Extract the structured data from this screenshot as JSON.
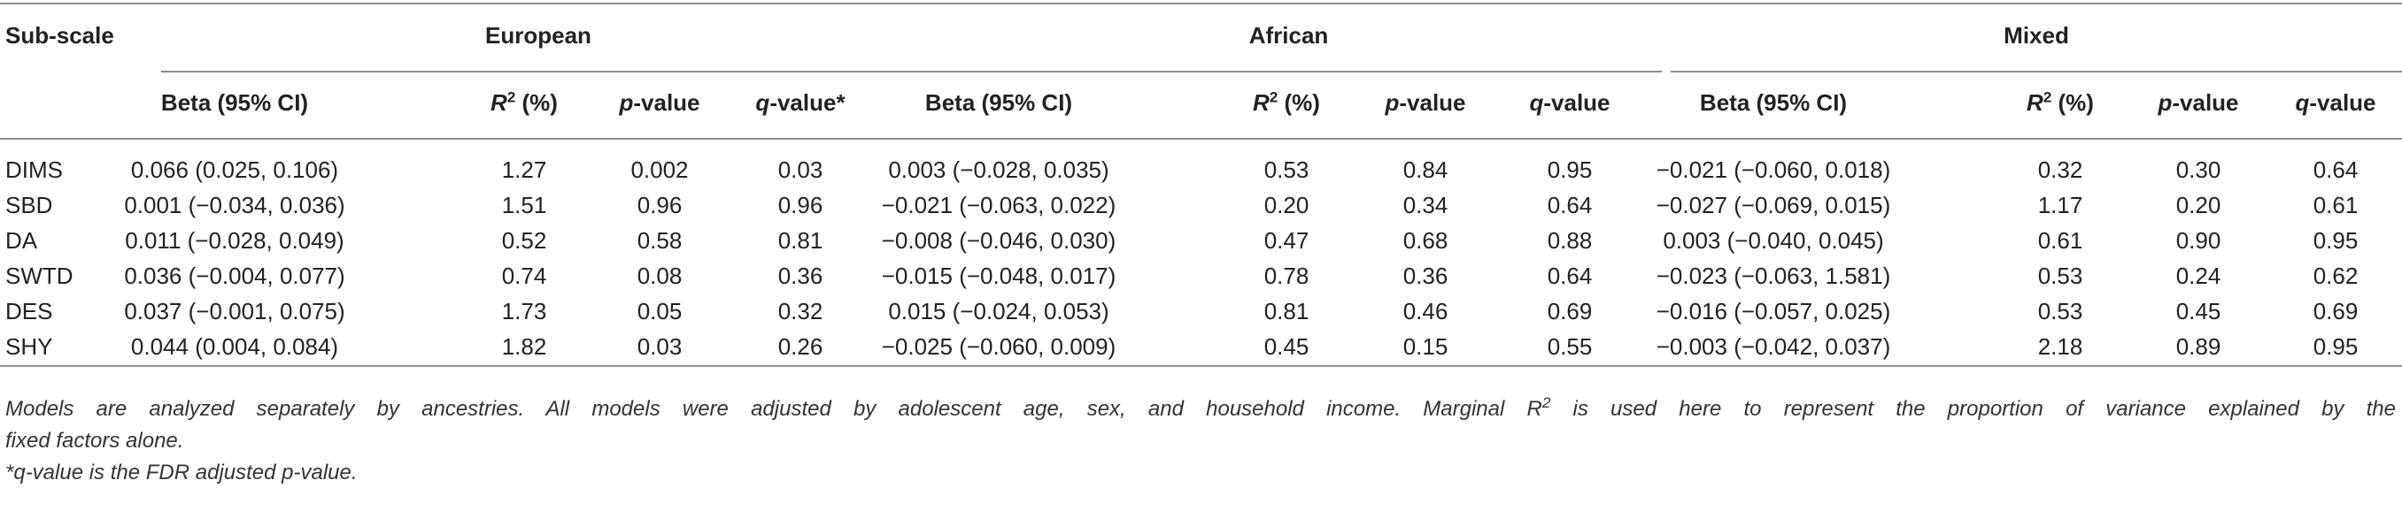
{
  "table": {
    "subscale_header": "Sub-scale",
    "groups": [
      "European",
      "African",
      "Mixed"
    ],
    "columns": [
      {
        "label": "Beta (95% CI)"
      },
      {
        "label": "R",
        "sup": "2",
        "suffix": " (%)"
      },
      {
        "prefix_italic": "p",
        "suffix": "-value"
      },
      {
        "prefix_italic": "q",
        "suffix": "-value*"
      },
      {
        "label": "Beta (95% CI)"
      },
      {
        "label": "R",
        "sup": "2",
        "suffix": " (%)"
      },
      {
        "prefix_italic": "p",
        "suffix": "-value"
      },
      {
        "prefix_italic": "q",
        "suffix": "-value"
      },
      {
        "label": "Beta (95% CI)"
      },
      {
        "label": "R",
        "sup": "2",
        "suffix": " (%)"
      },
      {
        "prefix_italic": "p",
        "suffix": "-value"
      },
      {
        "prefix_italic": "q",
        "suffix": "-value"
      }
    ],
    "rows": [
      {
        "name": "DIMS",
        "cells": [
          "0.066 (0.025, 0.106)",
          "1.27",
          "0.002",
          "0.03",
          "0.003 (−0.028, 0.035)",
          "0.53",
          "0.84",
          "0.95",
          "−0.021 (−0.060, 0.018)",
          "0.32",
          "0.30",
          "0.64"
        ]
      },
      {
        "name": "SBD",
        "cells": [
          "0.001 (−0.034, 0.036)",
          "1.51",
          "0.96",
          "0.96",
          "−0.021 (−0.063, 0.022)",
          "0.20",
          "0.34",
          "0.64",
          "−0.027 (−0.069, 0.015)",
          "1.17",
          "0.20",
          "0.61"
        ]
      },
      {
        "name": "DA",
        "cells": [
          "0.011 (−0.028, 0.049)",
          "0.52",
          "0.58",
          "0.81",
          "−0.008 (−0.046, 0.030)",
          "0.47",
          "0.68",
          "0.88",
          "0.003 (−0.040, 0.045)",
          "0.61",
          "0.90",
          "0.95"
        ]
      },
      {
        "name": "SWTD",
        "cells": [
          "0.036 (−0.004, 0.077)",
          "0.74",
          "0.08",
          "0.36",
          "−0.015 (−0.048, 0.017)",
          "0.78",
          "0.36",
          "0.64",
          "−0.023 (−0.063, 1.581)",
          "0.53",
          "0.24",
          "0.62"
        ]
      },
      {
        "name": "DES",
        "cells": [
          "0.037 (−0.001, 0.075)",
          "1.73",
          "0.05",
          "0.32",
          "0.015 (−0.024, 0.053)",
          "0.81",
          "0.46",
          "0.69",
          "−0.016 (−0.057, 0.025)",
          "0.53",
          "0.45",
          "0.69"
        ]
      },
      {
        "name": "SHY",
        "cells": [
          "0.044 (0.004, 0.084)",
          "1.82",
          "0.03",
          "0.26",
          "−0.025 (−0.060, 0.009)",
          "0.45",
          "0.15",
          "0.55",
          "−0.003 (−0.042, 0.037)",
          "2.18",
          "0.89",
          "0.95"
        ]
      }
    ]
  },
  "footnote": {
    "line1_a": "Models are analyzed separately by ancestries. All models were adjusted by adolescent age, sex, and household income. Marginal ",
    "line1_r": "R",
    "line1_sup": "2",
    "line1_b": " is used here to represent the proportion of variance explained by the",
    "line2": "fixed factors alone.",
    "line3": "*q-value is the FDR adjusted p-value."
  }
}
